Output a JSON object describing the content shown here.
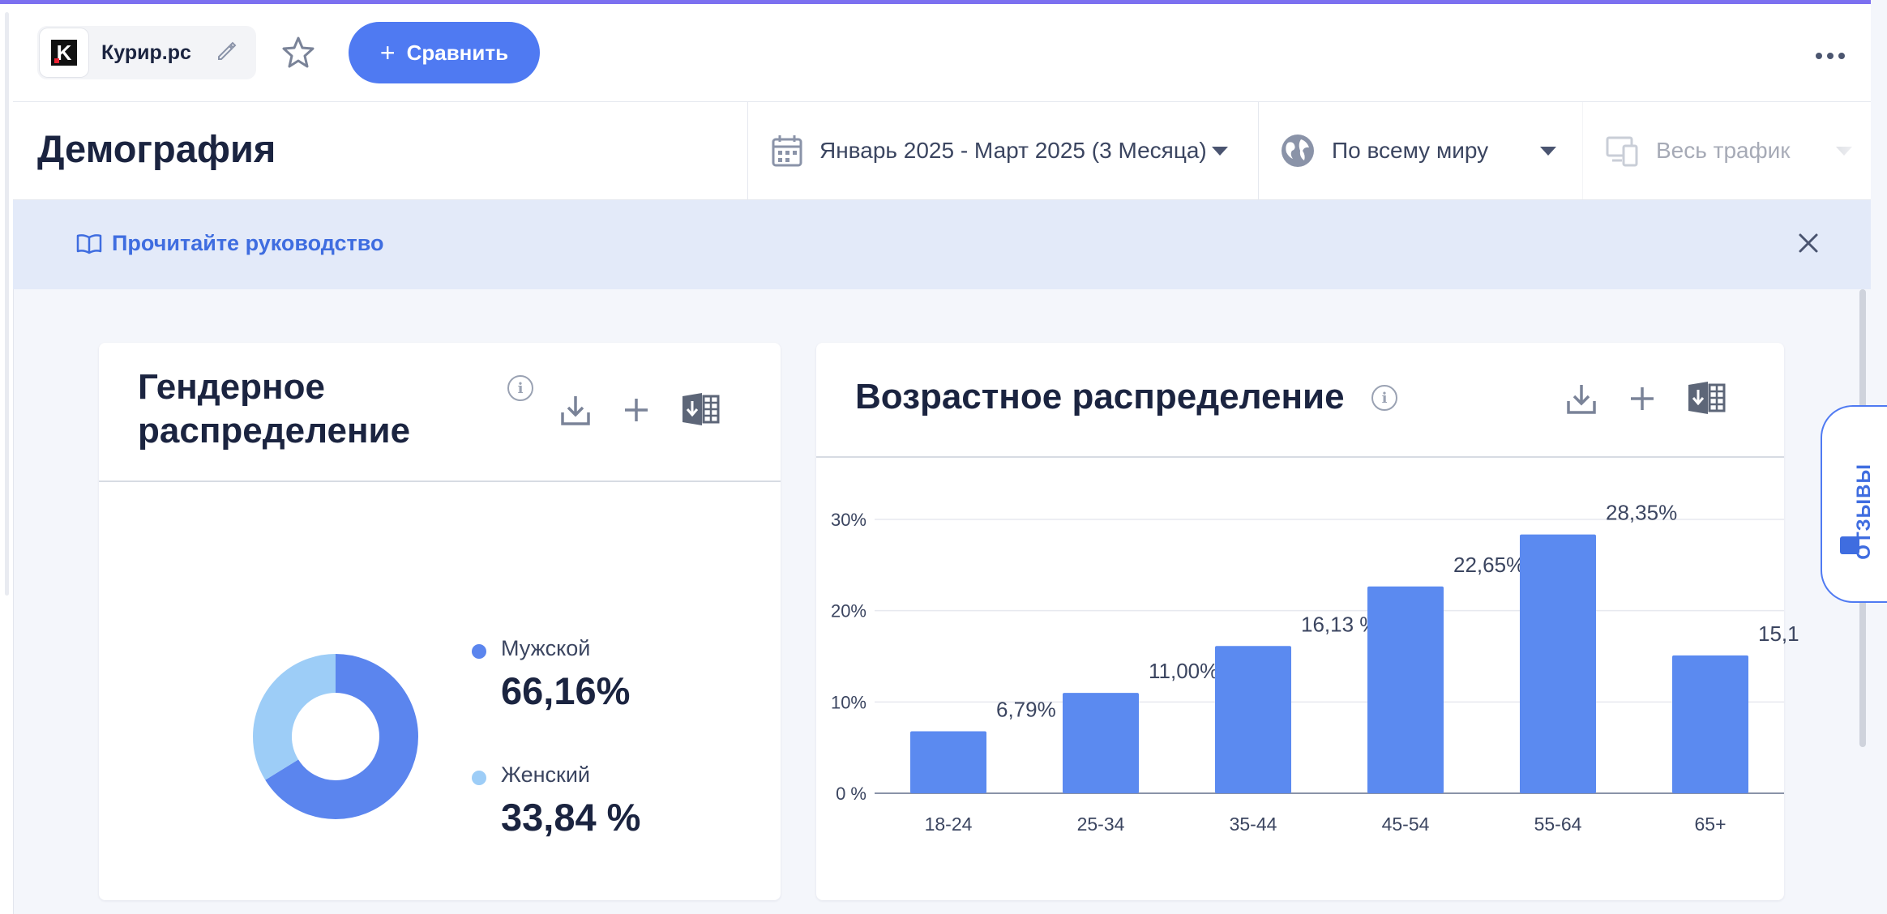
{
  "header": {
    "site_name": "Курир.рс",
    "logo_letter": "K",
    "compare_label": "Сравнить"
  },
  "page": {
    "title": "Демография"
  },
  "filters": {
    "date_range": "Январь 2025 - Март 2025 (3 Месяца)",
    "geo": "По всему миру",
    "traffic": "Весь трафик"
  },
  "guide": {
    "link_label": "Прочитайте руководство"
  },
  "feedback_tab": {
    "label": "ОТЗЫВЫ"
  },
  "gender_card": {
    "title": "Гендерное распределение",
    "male_label": "Мужской",
    "male_value": "66,16%",
    "female_label": "Женский",
    "female_value": "33,84 %",
    "colors": {
      "male": "#5b85ee",
      "female": "#9dcdf7"
    }
  },
  "age_card": {
    "title": "Возрастное распределение"
  },
  "chart_data": {
    "type": "bar",
    "categories": [
      "18-24",
      "25-34",
      "35-44",
      "45-54",
      "55-64",
      "65+"
    ],
    "values": [
      6.79,
      11.0,
      16.13,
      22.65,
      28.35,
      15.1
    ],
    "data_labels": [
      "6,79%",
      "11,00%",
      "16,13 %",
      "22,65%",
      "28,35%",
      "15,1"
    ],
    "yticks": [
      0,
      10,
      20,
      30
    ],
    "ytick_labels": [
      "0 %",
      "10%",
      "20%",
      "30%"
    ],
    "ylim": [
      0,
      30
    ],
    "bar_color": "#5b8af0",
    "grid": true
  },
  "gender_chart": {
    "type": "pie",
    "labels": [
      "Мужской",
      "Женский"
    ],
    "values": [
      66.16,
      33.84
    ]
  }
}
